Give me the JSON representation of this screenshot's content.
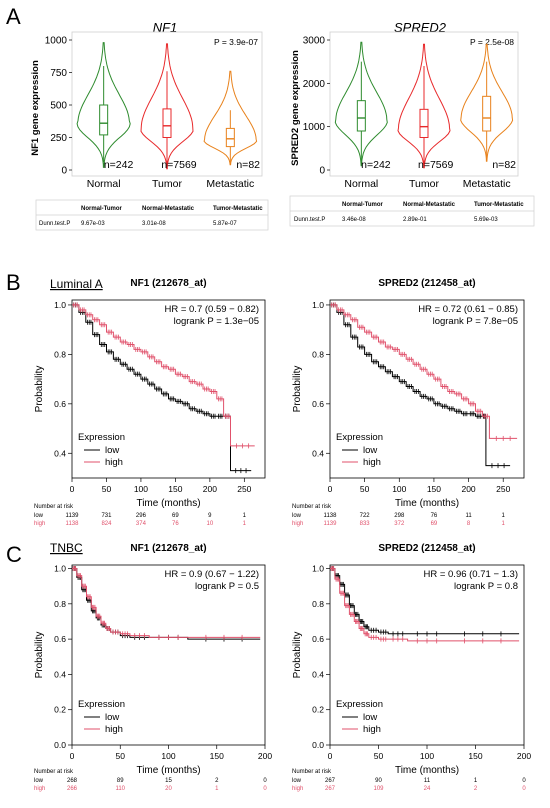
{
  "colors": {
    "normal": "#2e8b2e",
    "tumor": "#e8292b",
    "metastatic": "#e8821c",
    "km_low": "#000000",
    "km_high": "#e0516b"
  },
  "panel_A": {
    "letter": "A",
    "charts": [
      {
        "title": "NF1",
        "ylabel": "NF1 gene expression",
        "pvalue": "P = 3.9e-07",
        "yticks": [
          "1000",
          "750",
          "500",
          "250",
          "0"
        ],
        "ylim": [
          0,
          1000
        ],
        "groups": [
          {
            "name": "Normal",
            "n": "n=242",
            "median": 360,
            "q1": 270,
            "q3": 500,
            "whisker_low": 60,
            "whisker_high": 800,
            "min": 20,
            "max": 980,
            "mode": 360
          },
          {
            "name": "Tumor",
            "n": "n=7569",
            "median": 340,
            "q1": 250,
            "q3": 470,
            "whisker_low": 40,
            "whisker_high": 760,
            "min": 10,
            "max": 970,
            "mode": 320
          },
          {
            "name": "Metastatic",
            "n": "n=82",
            "median": 240,
            "q1": 180,
            "q3": 320,
            "whisker_low": 60,
            "whisker_high": 460,
            "min": 40,
            "max": 760,
            "mode": 230
          }
        ],
        "table": {
          "headers": [
            "",
            "Normal-Tumor",
            "Normal-Metastatic",
            "Tumor-Metastatic"
          ],
          "row": [
            "Dunn.test.P",
            "9.67e-03",
            "3.01e-08",
            "5.87e-07"
          ]
        }
      },
      {
        "title": "SPRED2",
        "ylabel": "SPRED2 gene expression",
        "pvalue": "P = 2.5e-08",
        "yticks": [
          "3000",
          "2000",
          "1000",
          "0"
        ],
        "ylim": [
          0,
          3000
        ],
        "groups": [
          {
            "name": "Normal",
            "n": "n=242",
            "median": 1200,
            "q1": 900,
            "q3": 1600,
            "whisker_low": 200,
            "whisker_high": 2500,
            "min": 100,
            "max": 2950,
            "mode": 1150
          },
          {
            "name": "Tumor",
            "n": "n=7569",
            "median": 1000,
            "q1": 750,
            "q3": 1400,
            "whisker_low": 100,
            "whisker_high": 2400,
            "min": 50,
            "max": 2900,
            "mode": 950
          },
          {
            "name": "Metastatic",
            "n": "n=82",
            "median": 1200,
            "q1": 900,
            "q3": 1700,
            "whisker_low": 300,
            "whisker_high": 2500,
            "min": 200,
            "max": 2900,
            "mode": 1200
          }
        ],
        "table": {
          "headers": [
            "",
            "Normal-Tumor",
            "Normal-Metastatic",
            "Tumor-Metastatic"
          ],
          "row": [
            "Dunn.test.P",
            "3.46e-08",
            "2.89e-01",
            "5.69e-03"
          ]
        }
      }
    ]
  },
  "panel_B": {
    "letter": "B",
    "subtitle": "Luminal A",
    "xlabel": "Time (months)",
    "ylabel": "Probability",
    "legend_title": "Expression",
    "legend_low": "low",
    "legend_high": "high",
    "risk_title": "Number at risk",
    "xticks": [
      0,
      50,
      100,
      150,
      200,
      250
    ],
    "xlim": [
      0,
      280
    ],
    "yticks": [
      0.4,
      0.6,
      0.8,
      1.0
    ],
    "ytick_labels": [
      "0.4",
      "0.6",
      "0.8",
      "1.0"
    ],
    "ylim": [
      0.3,
      1.02
    ],
    "charts": [
      {
        "title": "NF1 (212678_at)",
        "hr": "HR = 0.7 (0.59 − 0.82)",
        "logrank": "logrank P = 1.3e−05",
        "low_curve": [
          [
            0,
            1
          ],
          [
            10,
            0.97
          ],
          [
            20,
            0.93
          ],
          [
            30,
            0.88
          ],
          [
            40,
            0.84
          ],
          [
            50,
            0.81
          ],
          [
            60,
            0.78
          ],
          [
            70,
            0.76
          ],
          [
            80,
            0.74
          ],
          [
            90,
            0.72
          ],
          [
            100,
            0.7
          ],
          [
            110,
            0.68
          ],
          [
            120,
            0.66
          ],
          [
            130,
            0.64
          ],
          [
            140,
            0.62
          ],
          [
            150,
            0.61
          ],
          [
            160,
            0.6
          ],
          [
            170,
            0.58
          ],
          [
            180,
            0.57
          ],
          [
            190,
            0.56
          ],
          [
            200,
            0.55
          ],
          [
            210,
            0.55
          ],
          [
            220,
            0.55
          ],
          [
            230,
            0.33
          ],
          [
            260,
            0.33
          ]
        ],
        "high_curve": [
          [
            0,
            1
          ],
          [
            10,
            0.98
          ],
          [
            20,
            0.96
          ],
          [
            30,
            0.94
          ],
          [
            40,
            0.92
          ],
          [
            50,
            0.89
          ],
          [
            60,
            0.87
          ],
          [
            70,
            0.85
          ],
          [
            80,
            0.84
          ],
          [
            90,
            0.82
          ],
          [
            100,
            0.81
          ],
          [
            110,
            0.79
          ],
          [
            120,
            0.77
          ],
          [
            130,
            0.75
          ],
          [
            140,
            0.74
          ],
          [
            150,
            0.72
          ],
          [
            160,
            0.71
          ],
          [
            170,
            0.69
          ],
          [
            180,
            0.68
          ],
          [
            190,
            0.66
          ],
          [
            200,
            0.65
          ],
          [
            210,
            0.62
          ],
          [
            220,
            0.55
          ],
          [
            230,
            0.43
          ],
          [
            265,
            0.43
          ]
        ],
        "risk_low_label": "low",
        "risk_high_label": "high",
        "risk_low": [
          "1139",
          "731",
          "296",
          "69",
          "9",
          "1"
        ],
        "risk_high": [
          "1138",
          "824",
          "374",
          "76",
          "10",
          "1"
        ]
      },
      {
        "title": "SPRED2 (212458_at)",
        "hr": "HR = 0.72 (0.61 − 0.85)",
        "logrank": "logrank P = 7.8e−05",
        "low_curve": [
          [
            0,
            1
          ],
          [
            10,
            0.97
          ],
          [
            20,
            0.92
          ],
          [
            30,
            0.87
          ],
          [
            40,
            0.83
          ],
          [
            50,
            0.8
          ],
          [
            60,
            0.77
          ],
          [
            70,
            0.75
          ],
          [
            80,
            0.73
          ],
          [
            90,
            0.71
          ],
          [
            100,
            0.69
          ],
          [
            110,
            0.67
          ],
          [
            120,
            0.65
          ],
          [
            130,
            0.63
          ],
          [
            140,
            0.62
          ],
          [
            150,
            0.6
          ],
          [
            160,
            0.59
          ],
          [
            170,
            0.58
          ],
          [
            180,
            0.57
          ],
          [
            190,
            0.56
          ],
          [
            200,
            0.56
          ],
          [
            210,
            0.55
          ],
          [
            220,
            0.55
          ],
          [
            225,
            0.35
          ],
          [
            260,
            0.35
          ]
        ],
        "high_curve": [
          [
            0,
            1
          ],
          [
            10,
            0.98
          ],
          [
            20,
            0.96
          ],
          [
            30,
            0.94
          ],
          [
            40,
            0.91
          ],
          [
            50,
            0.89
          ],
          [
            60,
            0.87
          ],
          [
            70,
            0.85
          ],
          [
            80,
            0.83
          ],
          [
            90,
            0.82
          ],
          [
            100,
            0.8
          ],
          [
            110,
            0.78
          ],
          [
            120,
            0.76
          ],
          [
            130,
            0.74
          ],
          [
            140,
            0.72
          ],
          [
            150,
            0.7
          ],
          [
            160,
            0.67
          ],
          [
            170,
            0.65
          ],
          [
            180,
            0.64
          ],
          [
            190,
            0.62
          ],
          [
            200,
            0.6
          ],
          [
            210,
            0.57
          ],
          [
            220,
            0.55
          ],
          [
            230,
            0.46
          ],
          [
            270,
            0.46
          ]
        ],
        "risk_low_label": "low",
        "risk_high_label": "high",
        "risk_low": [
          "1138",
          "722",
          "298",
          "76",
          "11",
          "1"
        ],
        "risk_high": [
          "1139",
          "833",
          "372",
          "69",
          "8",
          "1"
        ]
      }
    ]
  },
  "panel_C": {
    "letter": "C",
    "subtitle": "TNBC",
    "xlabel": "Time (months)",
    "ylabel": "Probability",
    "legend_title": "Expression",
    "legend_low": "low",
    "legend_high": "high",
    "risk_title": "Number at risk",
    "xticks": [
      0,
      50,
      100,
      150,
      200
    ],
    "xlim": [
      0,
      200
    ],
    "yticks": [
      0.0,
      0.2,
      0.4,
      0.6,
      0.8,
      1.0
    ],
    "ytick_labels": [
      "0.0",
      "0.2",
      "0.4",
      "0.6",
      "0.8",
      "1.0"
    ],
    "ylim": [
      0,
      1.02
    ],
    "charts": [
      {
        "title": "NF1 (212678_at)",
        "hr": "HR = 0.9 (0.67 − 1.22)",
        "logrank": "logrank P = 0.5",
        "low_curve": [
          [
            0,
            1
          ],
          [
            5,
            0.95
          ],
          [
            10,
            0.88
          ],
          [
            15,
            0.82
          ],
          [
            20,
            0.76
          ],
          [
            25,
            0.72
          ],
          [
            30,
            0.68
          ],
          [
            35,
            0.66
          ],
          [
            40,
            0.64
          ],
          [
            50,
            0.62
          ],
          [
            60,
            0.61
          ],
          [
            80,
            0.61
          ],
          [
            120,
            0.6
          ],
          [
            195,
            0.6
          ]
        ],
        "high_curve": [
          [
            0,
            1
          ],
          [
            5,
            0.96
          ],
          [
            10,
            0.9
          ],
          [
            15,
            0.84
          ],
          [
            20,
            0.78
          ],
          [
            25,
            0.73
          ],
          [
            30,
            0.69
          ],
          [
            35,
            0.66
          ],
          [
            40,
            0.64
          ],
          [
            50,
            0.63
          ],
          [
            60,
            0.62
          ],
          [
            80,
            0.61
          ],
          [
            120,
            0.61
          ],
          [
            195,
            0.61
          ]
        ],
        "risk_low_label": "low",
        "risk_high_label": "high",
        "risk_low": [
          "268",
          "89",
          "15",
          "2",
          "0"
        ],
        "risk_high": [
          "266",
          "110",
          "20",
          "1",
          "0"
        ]
      },
      {
        "title": "SPRED2 (212458_at)",
        "hr": "HR = 0.96 (0.71 − 1.3)",
        "logrank": "logrank P = 0.8",
        "low_curve": [
          [
            0,
            1
          ],
          [
            5,
            0.96
          ],
          [
            10,
            0.91
          ],
          [
            15,
            0.85
          ],
          [
            20,
            0.79
          ],
          [
            25,
            0.74
          ],
          [
            30,
            0.7
          ],
          [
            35,
            0.67
          ],
          [
            40,
            0.65
          ],
          [
            50,
            0.64
          ],
          [
            60,
            0.63
          ],
          [
            80,
            0.63
          ],
          [
            120,
            0.63
          ],
          [
            195,
            0.63
          ]
        ],
        "high_curve": [
          [
            0,
            1
          ],
          [
            5,
            0.94
          ],
          [
            10,
            0.86
          ],
          [
            15,
            0.79
          ],
          [
            20,
            0.74
          ],
          [
            25,
            0.7
          ],
          [
            30,
            0.66
          ],
          [
            35,
            0.63
          ],
          [
            40,
            0.61
          ],
          [
            50,
            0.6
          ],
          [
            60,
            0.6
          ],
          [
            80,
            0.59
          ],
          [
            120,
            0.59
          ],
          [
            195,
            0.59
          ]
        ],
        "risk_low_label": "low",
        "risk_high_label": "high",
        "risk_low": [
          "267",
          "90",
          "11",
          "1",
          "0"
        ],
        "risk_high": [
          "267",
          "109",
          "24",
          "2",
          "0"
        ]
      }
    ]
  }
}
